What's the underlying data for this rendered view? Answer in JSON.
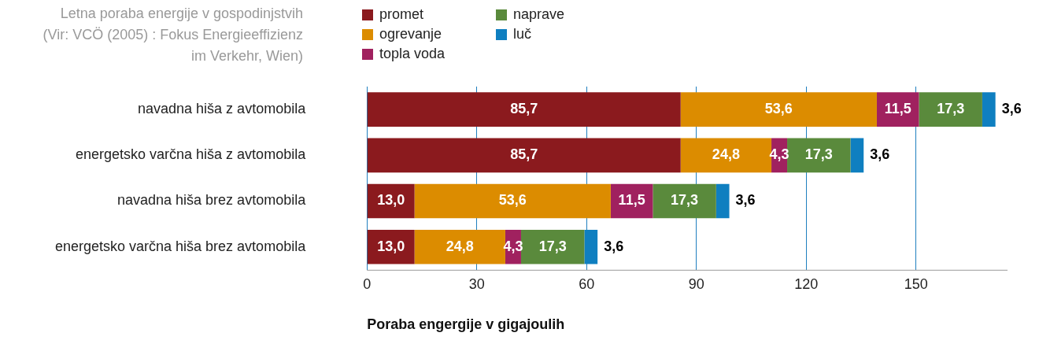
{
  "chart_data": {
    "type": "bar",
    "orientation": "horizontal",
    "stacked": true,
    "title": "Letna poraba energije v gospodinjstvih (Vir: VCÖ (2005) : Fokus Energieeffizienz im Verkehr, Wien)",
    "xlabel": "Poraba engergije v gigajoulih",
    "categories": [
      "navadna hiša z avtomobila",
      "energetsko varčna hiša z avtomobila",
      "navadna hiša brez avtomobila",
      "energetsko varčna hiša brez avtomobila"
    ],
    "series": [
      {
        "name": "promet",
        "color": "#8b1a1e",
        "values": [
          85.7,
          85.7,
          13.0,
          13.0
        ],
        "value_labels": [
          "85,7",
          "85,7",
          "13,0",
          "13,0"
        ]
      },
      {
        "name": "ogrevanje",
        "color": "#dc8c00",
        "values": [
          53.6,
          24.8,
          53.6,
          24.8
        ],
        "value_labels": [
          "53,6",
          "24,8",
          "53,6",
          "24,8"
        ]
      },
      {
        "name": "topla voda",
        "color": "#a0215f",
        "values": [
          11.5,
          4.3,
          11.5,
          4.3
        ],
        "value_labels": [
          "11,5",
          "4,3",
          "11,5",
          "4,3"
        ]
      },
      {
        "name": "naprave",
        "color": "#5a8a3c",
        "values": [
          17.3,
          17.3,
          17.3,
          17.3
        ],
        "value_labels": [
          "17,3",
          "17,3",
          "17,3",
          "17,3"
        ]
      },
      {
        "name": "luč",
        "color": "#0f7fc0",
        "values": [
          3.6,
          3.6,
          3.6,
          3.6
        ],
        "value_labels": [
          "3,6",
          "3,6",
          "3,6",
          "3,6"
        ]
      }
    ],
    "xlim": [
      0,
      175
    ],
    "xticks": [
      0,
      30,
      60,
      90,
      120,
      150
    ],
    "grid": "x",
    "legend": "top left"
  }
}
